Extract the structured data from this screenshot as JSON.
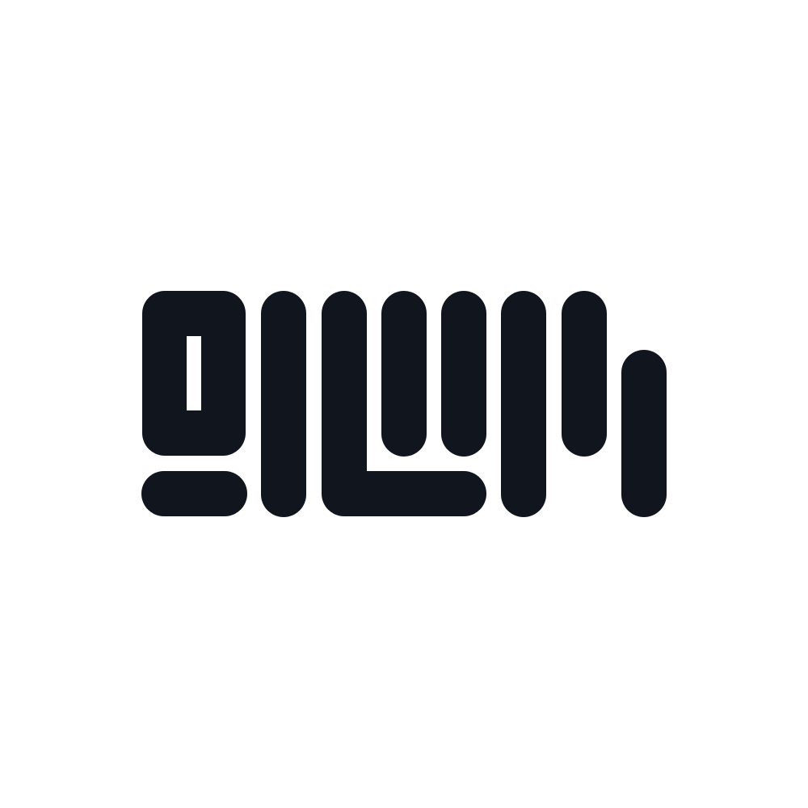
{
  "logo": {
    "name": "hangul-wordmark-logo",
    "lettering": "의쎄",
    "ink_color": "#11151e",
    "background_color": "#ffffff"
  }
}
